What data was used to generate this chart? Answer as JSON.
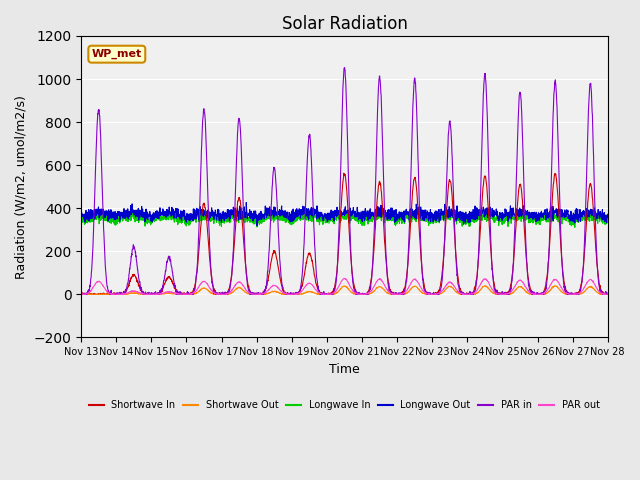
{
  "title": "Solar Radiation",
  "xlabel": "Time",
  "ylabel": "Radiation (W/m2, umol/m2/s)",
  "ylim": [
    -200,
    1200
  ],
  "yticks": [
    -200,
    0,
    200,
    400,
    600,
    800,
    1000,
    1200
  ],
  "x_tick_labels": [
    "Nov 13",
    "Nov 14",
    "Nov 15",
    "Nov 16",
    "Nov 17",
    "Nov 18",
    "Nov 19",
    "Nov 20",
    "Nov 21",
    "Nov 22",
    "Nov 23",
    "Nov 24",
    "Nov 25",
    "Nov 26",
    "Nov 27",
    "Nov 28"
  ],
  "background_color": "#e8e8e8",
  "plot_bg_color": "#f0f0f0",
  "station_label": "WP_met",
  "legend_entries": [
    "Shortwave In",
    "Shortwave Out",
    "Longwave In",
    "Longwave Out",
    "PAR in",
    "PAR out"
  ],
  "line_colors": [
    "#cc0000",
    "#ff8800",
    "#00cc00",
    "#0000cc",
    "#8800cc",
    "#ff44cc"
  ],
  "n_days": 15,
  "seed": 42
}
